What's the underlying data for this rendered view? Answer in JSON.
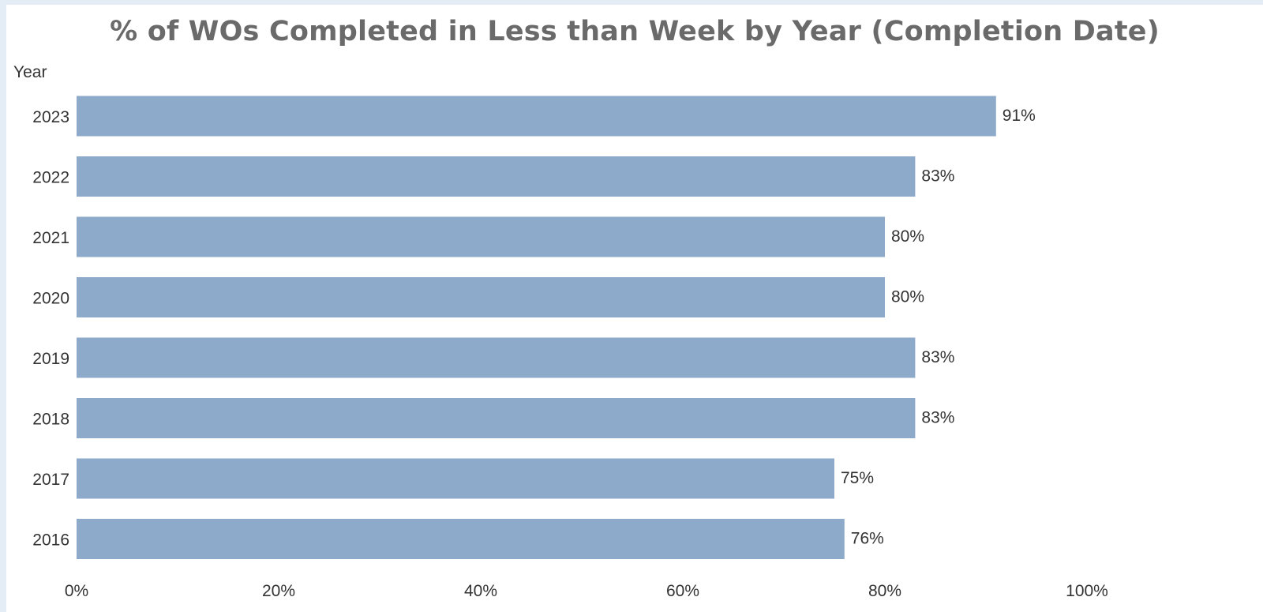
{
  "chart_data": {
    "type": "bar",
    "orientation": "horizontal",
    "title": "% of WOs Completed in Less than Week by Year (Completion Date)",
    "ylabel": "Year",
    "xlabel": "",
    "categories": [
      "2023",
      "2022",
      "2021",
      "2020",
      "2019",
      "2018",
      "2017",
      "2016"
    ],
    "values": [
      91,
      83,
      80,
      80,
      83,
      83,
      75,
      76
    ],
    "data_labels": [
      "91%",
      "83%",
      "80%",
      "80%",
      "83%",
      "83%",
      "75%",
      "76%"
    ],
    "xlim": [
      0,
      115
    ],
    "x_ticks": [
      0,
      20,
      40,
      60,
      80,
      100
    ],
    "x_tick_labels": [
      "0%",
      "20%",
      "40%",
      "60%",
      "80%",
      "100%"
    ],
    "grid": false,
    "legend": "none",
    "bar_color": "#8eaacb"
  }
}
